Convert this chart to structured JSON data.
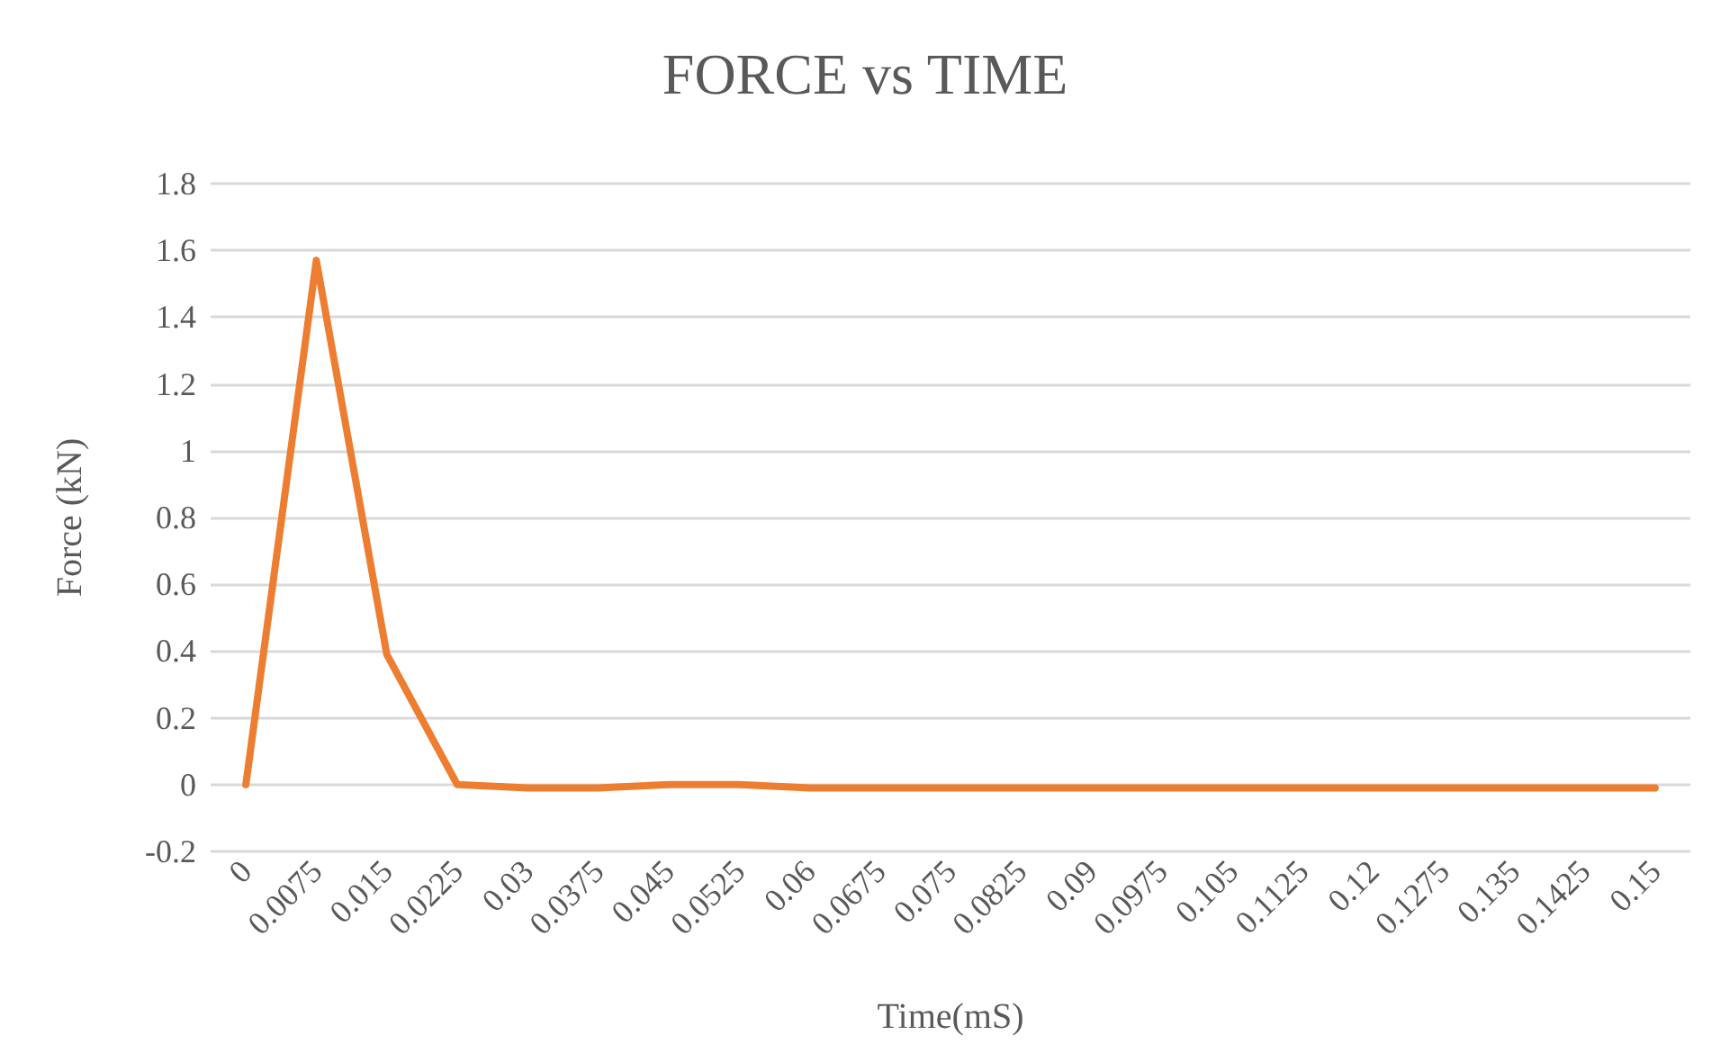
{
  "chart_data": {
    "type": "line",
    "title": "FORCE vs TIME",
    "xlabel": "Time(mS)",
    "ylabel": "Force (kN)",
    "categories": [
      "0",
      "0.0075",
      "0.015",
      "0.0225",
      "0.03",
      "0.0375",
      "0.045",
      "0.0525",
      "0.06",
      "0.0675",
      "0.075",
      "0.0825",
      "0.09",
      "0.0975",
      "0.105",
      "0.1125",
      "0.12",
      "0.1275",
      "0.135",
      "0.1425",
      "0.15"
    ],
    "series": [
      {
        "color": "#ed7d31",
        "values": [
          0,
          1.57,
          0.39,
          0,
          -0.01,
          -0.01,
          0,
          0,
          -0.01,
          -0.01,
          -0.01,
          -0.01,
          -0.01,
          -0.01,
          -0.01,
          -0.01,
          -0.01,
          -0.01,
          -0.01,
          -0.01,
          -0.01
        ]
      }
    ],
    "ylim": [
      -0.2,
      1.8
    ],
    "yticks": [
      -0.2,
      0,
      0.2,
      0.4,
      0.6,
      0.8,
      1,
      1.2,
      1.4,
      1.6,
      1.8
    ],
    "grid": "y",
    "marker": "none",
    "line_style": "solid"
  }
}
